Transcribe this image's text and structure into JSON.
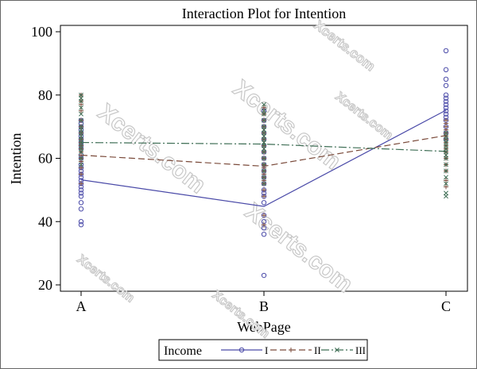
{
  "watermark": {
    "text": "Xcerts.com",
    "color": "#c8c8c8"
  },
  "legend": {
    "title": "Income",
    "entries": [
      {
        "label": "I",
        "color": "#4a4aa8",
        "dash": "",
        "marker": "circle"
      },
      {
        "label": "II",
        "color": "#7a4a3a",
        "dash": "8,4",
        "marker": "plus"
      },
      {
        "label": "III",
        "color": "#3e6e55",
        "dash": "10,3,2,3",
        "marker": "x"
      }
    ]
  },
  "chart_data": {
    "type": "line",
    "title": "Interaction Plot for Intention",
    "xlabel": "WebPage",
    "ylabel": "Intention",
    "categories": [
      "A",
      "B",
      "C"
    ],
    "ylim": [
      20,
      100
    ],
    "yticks": [
      20,
      40,
      60,
      80,
      100
    ],
    "grid": false,
    "legend_position": "bottom",
    "series": [
      {
        "name": "I",
        "color": "#4a4aa8",
        "marker": "circle",
        "dash": "",
        "means": [
          53.2,
          44.8,
          75.2
        ],
        "points": [
          [
            39,
            40,
            44,
            46,
            48,
            49,
            50,
            51,
            52,
            53,
            54,
            55,
            56,
            57,
            58,
            60,
            61,
            63,
            64,
            65,
            66,
            67,
            68,
            69,
            70,
            71,
            72
          ],
          [
            23,
            36,
            38,
            40,
            42,
            46,
            48,
            49,
            50,
            52,
            54,
            56,
            58,
            60,
            62,
            64,
            66,
            68,
            70,
            72,
            75
          ],
          [
            66,
            68,
            70,
            72,
            73,
            74,
            75,
            76,
            77,
            78,
            79,
            80,
            83,
            85,
            88,
            94
          ]
        ]
      },
      {
        "name": "II",
        "color": "#7a4a3a",
        "marker": "plus",
        "dash": "8,4",
        "means": [
          61.0,
          57.5,
          67.2
        ],
        "points": [
          [
            52,
            55,
            57,
            59,
            60,
            61,
            62,
            63,
            64,
            65,
            66,
            68,
            70,
            72,
            75,
            77,
            78,
            80
          ],
          [
            39,
            42,
            48,
            50,
            52,
            53,
            54,
            55,
            56,
            57,
            58,
            60,
            62,
            64,
            66,
            68,
            70,
            72,
            74,
            76
          ],
          [
            51,
            53,
            56,
            58,
            60,
            62,
            63,
            64,
            65,
            66,
            67,
            68,
            69,
            70,
            71,
            72
          ]
        ]
      },
      {
        "name": "III",
        "color": "#3e6e55",
        "marker": "x",
        "dash": "10,3,2,3",
        "means": [
          65.0,
          64.5,
          62.2
        ],
        "points": [
          [
            58,
            60,
            62,
            63,
            64,
            65,
            66,
            67,
            68,
            69,
            70,
            72,
            74,
            76,
            78,
            79,
            80
          ],
          [
            52,
            54,
            56,
            58,
            60,
            62,
            63,
            64,
            65,
            66,
            67,
            68,
            69,
            70,
            72,
            74,
            75,
            77
          ],
          [
            48,
            49,
            52,
            54,
            56,
            58,
            60,
            61,
            62,
            63,
            64,
            65,
            66,
            67,
            68
          ]
        ]
      }
    ]
  }
}
